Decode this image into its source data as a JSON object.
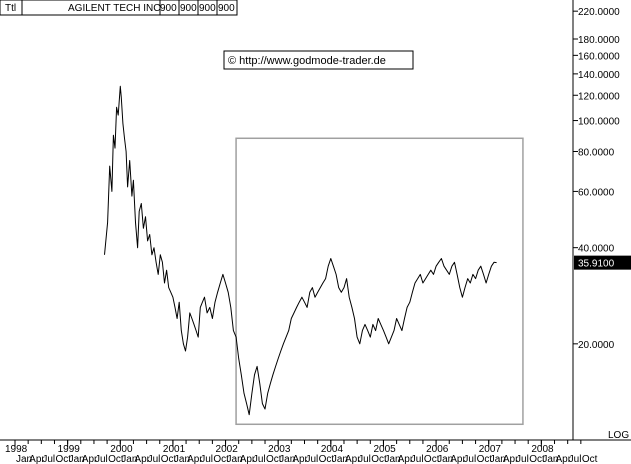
{
  "header": {
    "ticker": "Ttl",
    "name": "AGILENT TECH INC",
    "fields": [
      "900",
      "900",
      "900",
      "900"
    ]
  },
  "copyright": "© http://www.godmode-trader.de",
  "log_label": "LOG",
  "colors": {
    "line": "#000000",
    "box": "#a0a0a0",
    "last_price_bg": "#000000",
    "last_price_text": "#ffffff"
  },
  "chart_data": {
    "type": "line",
    "scale": "log",
    "ylim": [
      10,
      230
    ],
    "xlim": [
      1998.0,
      2009.0
    ],
    "y_ticks": [
      {
        "value": 220,
        "label": "220.0000"
      },
      {
        "value": 180,
        "label": "180.0000"
      },
      {
        "value": 160,
        "label": "160.0000"
      },
      {
        "value": 140,
        "label": "140.0000"
      },
      {
        "value": 120,
        "label": "120.0000"
      },
      {
        "value": 100,
        "label": "100.0000"
      },
      {
        "value": 80,
        "label": "80.0000"
      },
      {
        "value": 60,
        "label": "60.0000"
      },
      {
        "value": 40,
        "label": "40.0000"
      },
      {
        "value": 20,
        "label": "20.0000"
      }
    ],
    "year_labels": [
      {
        "x": 1998.0,
        "label": "1998"
      },
      {
        "x": 1999.0,
        "label": "1999"
      },
      {
        "x": 2000.0,
        "label": "2000"
      },
      {
        "x": 2001.0,
        "label": "2001"
      },
      {
        "x": 2002.0,
        "label": "2002"
      },
      {
        "x": 2003.0,
        "label": "2003"
      },
      {
        "x": 2004.0,
        "label": "2004"
      },
      {
        "x": 2005.0,
        "label": "2005"
      },
      {
        "x": 2006.0,
        "label": "2006"
      },
      {
        "x": 2007.0,
        "label": "2007"
      },
      {
        "x": 2008.0,
        "label": "2008"
      }
    ],
    "month_labels": [
      "Jan",
      "Apr",
      "Jul",
      "Oct"
    ],
    "last_price": {
      "value": 35.91,
      "label": "35.9100"
    },
    "highlight_box": {
      "x0": 2002.2,
      "x1": 2007.65,
      "y0": 11.2,
      "y1": 88
    },
    "series": [
      {
        "x": [
          1999.7,
          1999.76,
          1999.8,
          1999.84,
          1999.87,
          1999.9,
          1999.93,
          1999.96,
          2000.0,
          2000.02,
          2000.05,
          2000.08,
          2000.11,
          2000.14,
          2000.18,
          2000.22,
          2000.25,
          2000.29,
          2000.33,
          2000.36,
          2000.4,
          2000.44,
          2000.48,
          2000.52,
          2000.56,
          2000.6,
          2000.64,
          2000.68,
          2000.72,
          2000.76,
          2000.8,
          2000.84,
          2000.88,
          2000.92,
          2000.96,
          2001.0,
          2001.04,
          2001.08,
          2001.12,
          2001.16,
          2001.2,
          2001.24,
          2001.28,
          2001.32,
          2001.36,
          2001.4,
          2001.44,
          2001.48,
          2001.52,
          2001.56,
          2001.6,
          2001.65,
          2001.7,
          2001.75,
          2001.8,
          2001.85,
          2001.9,
          2001.95,
          2002.0,
          2002.05,
          2002.1,
          2002.15,
          2002.2,
          2002.25,
          2002.3,
          2002.35,
          2002.4,
          2002.45,
          2002.5,
          2002.55,
          2002.6,
          2002.65,
          2002.7,
          2002.75,
          2002.8,
          2002.85,
          2002.9,
          2002.95,
          2003.0,
          2003.05,
          2003.1,
          2003.15,
          2003.2,
          2003.25,
          2003.3,
          2003.35,
          2003.4,
          2003.45,
          2003.5,
          2003.55,
          2003.6,
          2003.65,
          2003.7,
          2003.75,
          2003.8,
          2003.85,
          2003.9,
          2003.95,
          2004.0,
          2004.05,
          2004.1,
          2004.15,
          2004.2,
          2004.25,
          2004.3,
          2004.35,
          2004.4,
          2004.45,
          2004.5,
          2004.55,
          2004.6,
          2004.65,
          2004.7,
          2004.75,
          2004.8,
          2004.85,
          2004.9,
          2004.95,
          2005.0,
          2005.05,
          2005.1,
          2005.15,
          2005.2,
          2005.25,
          2005.3,
          2005.35,
          2005.4,
          2005.45,
          2005.5,
          2005.55,
          2005.6,
          2005.65,
          2005.7,
          2005.75,
          2005.8,
          2005.85,
          2005.9,
          2005.95,
          2006.0,
          2006.05,
          2006.1,
          2006.15,
          2006.2,
          2006.25,
          2006.3,
          2006.35,
          2006.4,
          2006.45,
          2006.5,
          2006.55,
          2006.6,
          2006.65,
          2006.7,
          2006.75,
          2006.8,
          2006.85,
          2006.9,
          2006.95,
          2007.0,
          2007.05,
          2007.1,
          2007.15
        ],
        "y": [
          38,
          48,
          72,
          60,
          90,
          82,
          110,
          104,
          128,
          118,
          98,
          88,
          80,
          62,
          75,
          58,
          65,
          48,
          40,
          52,
          55,
          46,
          50,
          42,
          44,
          38,
          40,
          36,
          33,
          38,
          36,
          31,
          34,
          30,
          29,
          28,
          26,
          24,
          27,
          22,
          20,
          19,
          21,
          25,
          24,
          23,
          22,
          21,
          26,
          27,
          28,
          25,
          26,
          24,
          27,
          29,
          31,
          33,
          31,
          29,
          26,
          22,
          21,
          18,
          16,
          14,
          13,
          12,
          14,
          16,
          17,
          15,
          13,
          12.5,
          14,
          15,
          16,
          17,
          18,
          19,
          20,
          21,
          22,
          24,
          25,
          26,
          27,
          28,
          27,
          26,
          29,
          30,
          28,
          29,
          30,
          31,
          32,
          35,
          37,
          35,
          33,
          30,
          29,
          30,
          32,
          28,
          26,
          24,
          21,
          20,
          22,
          23,
          22,
          21,
          23,
          22,
          24,
          23,
          22,
          21,
          20,
          21,
          22,
          24,
          23,
          22,
          24,
          26,
          27,
          29,
          31,
          32,
          33,
          31,
          32,
          33,
          34,
          33,
          35,
          36,
          37,
          35,
          34,
          33,
          35,
          36,
          33,
          30,
          28,
          30,
          32,
          31,
          33,
          32,
          34,
          35,
          33,
          31,
          33,
          35,
          36,
          35.91
        ]
      }
    ]
  }
}
